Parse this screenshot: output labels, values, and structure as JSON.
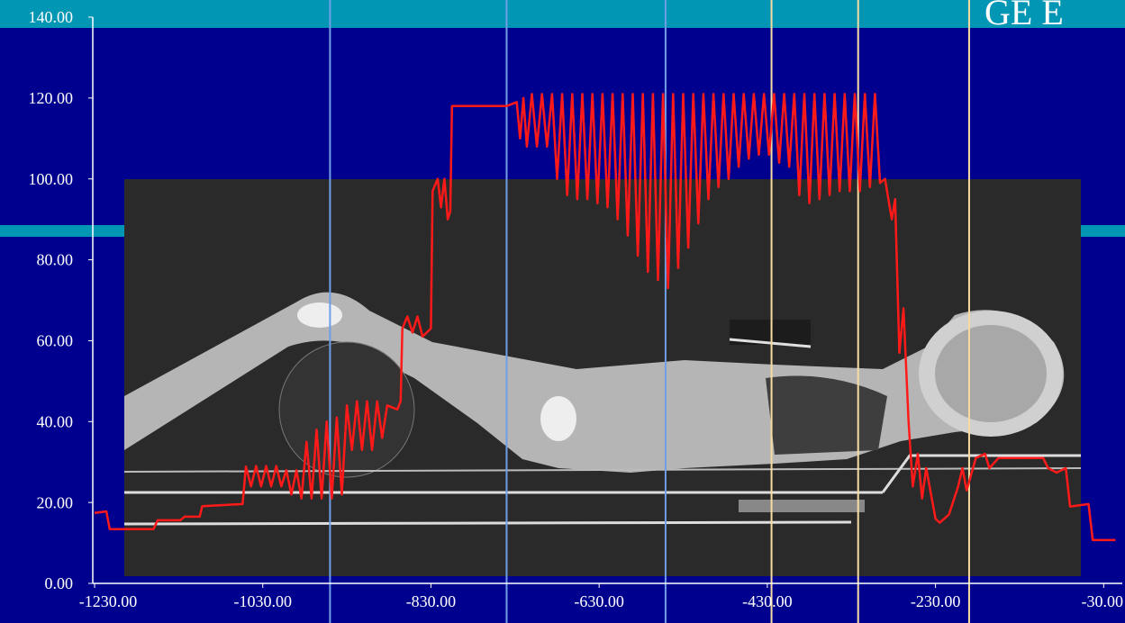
{
  "chart_data": {
    "type": "line",
    "title": "GE E",
    "x": [
      -1230,
      -1216,
      -1212,
      -1160,
      -1155,
      -1128,
      -1123,
      -1105,
      -1102,
      -1054,
      -1050,
      -1044,
      -1038,
      -1032,
      -1026,
      -1020,
      -1014,
      -1008,
      -1002,
      -996,
      -990,
      -984,
      -978,
      -972,
      -966,
      -960,
      -954,
      -948,
      -942,
      -936,
      -930,
      -924,
      -918,
      -912,
      -906,
      -900,
      -894,
      -888,
      -882,
      -870,
      -866,
      -864,
      -858,
      -852,
      -846,
      -840,
      -830,
      -828,
      -822,
      -818,
      -814,
      -810,
      -807,
      -805,
      -740,
      -728,
      -724,
      -720,
      -716,
      -710,
      -704,
      -698,
      -692,
      -686,
      -680,
      -674,
      -668,
      -662,
      -656,
      -650,
      -644,
      -638,
      -632,
      -626,
      -620,
      -614,
      -608,
      -602,
      -596,
      -590,
      -584,
      -578,
      -572,
      -566,
      -560,
      -554,
      -548,
      -542,
      -536,
      -530,
      -524,
      -518,
      -512,
      -506,
      -500,
      -494,
      -488,
      -482,
      -476,
      -470,
      -464,
      -458,
      -452,
      -446,
      -440,
      -434,
      -428,
      -422,
      -416,
      -410,
      -404,
      -398,
      -392,
      -386,
      -380,
      -374,
      -368,
      -362,
      -356,
      -350,
      -344,
      -338,
      -332,
      -326,
      -320,
      -314,
      -308,
      -302,
      -296,
      -290,
      -286,
      -282,
      -278,
      -273,
      -268,
      -262,
      -257,
      -251,
      -246,
      -241,
      -230,
      -225,
      -214,
      -203,
      -198,
      -193,
      -182,
      -171,
      -166,
      -155,
      -102,
      -96,
      -86,
      -75,
      -70,
      -48,
      -43,
      -16
    ],
    "series": [
      {
        "color": "#ff1a1a",
        "values": [
          17.4,
          17.8,
          13.4,
          13.4,
          15.6,
          15.6,
          16.5,
          16.5,
          19.1,
          19.6,
          28.9,
          24,
          29,
          24,
          29,
          24,
          29,
          24,
          28,
          22,
          28,
          21,
          35,
          21,
          38,
          21,
          40,
          21,
          41,
          22,
          44,
          33,
          45,
          33,
          45,
          33,
          45,
          36,
          44,
          43,
          45,
          63,
          66,
          62,
          66,
          61,
          63,
          97,
          100,
          93,
          100,
          90,
          92,
          118,
          118,
          119,
          110,
          120,
          108,
          121,
          108,
          121,
          108,
          121,
          100,
          121,
          96,
          121,
          95,
          121,
          95,
          121,
          94,
          121,
          93,
          121,
          90,
          121,
          86,
          121,
          81,
          121,
          77,
          121,
          75,
          121,
          73,
          121,
          78,
          121,
          83,
          121,
          89,
          121,
          95,
          121,
          98,
          121,
          100,
          121,
          103,
          121,
          105,
          121,
          106,
          121,
          106,
          121,
          104,
          121,
          103,
          121,
          96,
          121,
          94,
          121,
          95,
          121,
          96,
          121,
          97,
          121,
          97,
          121,
          97,
          121,
          98,
          121,
          99,
          100,
          95,
          90,
          95,
          57,
          68,
          40,
          24,
          32,
          21,
          28.5,
          16,
          15,
          17,
          24,
          28.5,
          23,
          31,
          32,
          28.5,
          31,
          31,
          28.5,
          27.4,
          28.5,
          19,
          19.6,
          10.7,
          10.7
        ]
      }
    ],
    "reference_lines": [
      {
        "x": -950,
        "color": "#6f9fe6"
      },
      {
        "x": -740,
        "color": "#6f9fe6"
      },
      {
        "x": -551,
        "color": "#6f9fe6"
      },
      {
        "x": -425,
        "color": "#f7dca2"
      },
      {
        "x": -322,
        "color": "#f7dca2"
      },
      {
        "x": -190,
        "color": "#f7dca2"
      }
    ],
    "xlim": [
      -1230,
      -10
    ],
    "ylim": [
      0,
      140
    ],
    "xticks": [
      {
        "value": -1230,
        "label": "-1230.00"
      },
      {
        "value": -1030,
        "label": "-1030.00"
      },
      {
        "value": -830,
        "label": "-830.00"
      },
      {
        "value": -630,
        "label": "-630.00"
      },
      {
        "value": -430,
        "label": "-430.00"
      },
      {
        "value": -230,
        "label": "-230.00"
      },
      {
        "value": -30,
        "label": "-30.00"
      }
    ],
    "yticks": [
      {
        "value": 0,
        "label": "0.00"
      },
      {
        "value": 20,
        "label": "20.00"
      },
      {
        "value": 40,
        "label": "40.00"
      },
      {
        "value": 60,
        "label": "60.00"
      },
      {
        "value": 80,
        "label": "80.00"
      },
      {
        "value": 100,
        "label": "100.00"
      },
      {
        "value": 120,
        "label": "120.00"
      },
      {
        "value": 140,
        "label": "140.00"
      }
    ]
  }
}
